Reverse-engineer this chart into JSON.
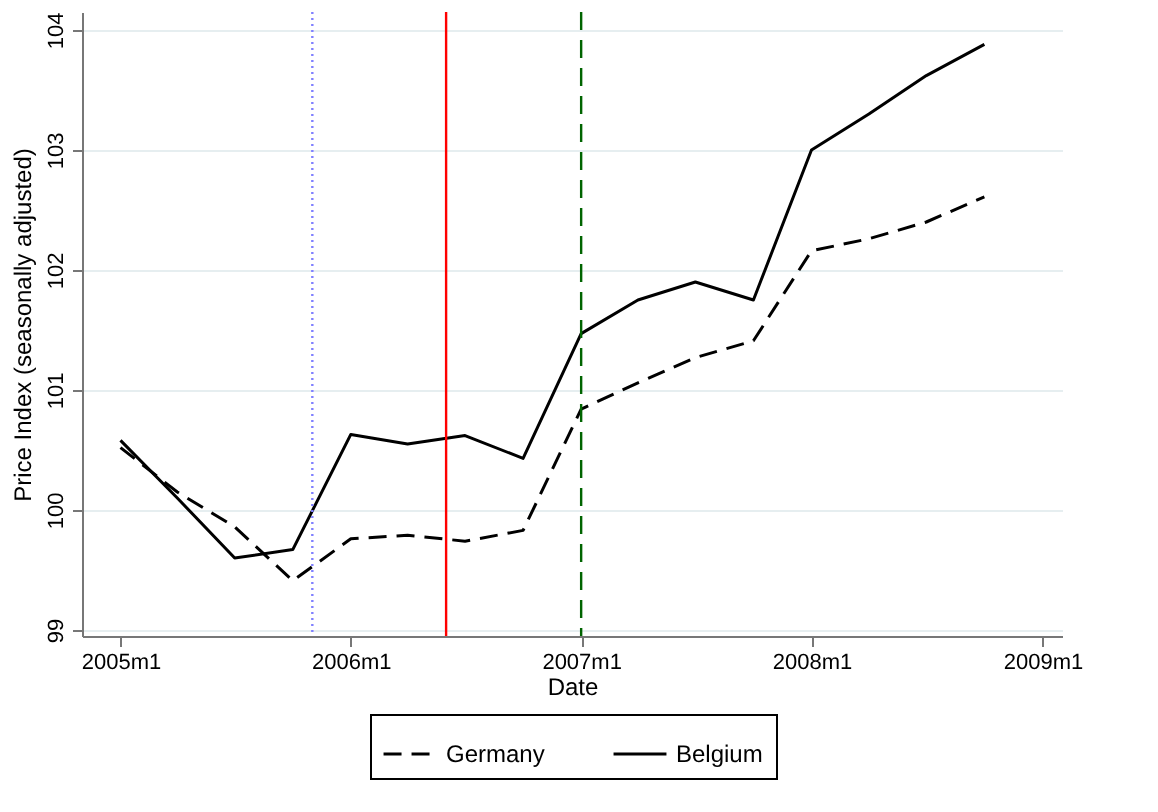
{
  "chart_data": {
    "type": "line",
    "xlabel": "Date",
    "ylabel": "Price Index (seasonally adjusted)",
    "x": [
      "2005-01",
      "2005-04",
      "2005-07",
      "2005-10",
      "2006-01",
      "2006-04",
      "2006-07",
      "2006-10",
      "2007-01",
      "2007-04",
      "2007-07",
      "2007-10",
      "2008-01",
      "2008-04",
      "2008-07",
      "2008-10"
    ],
    "series": [
      {
        "name": "Germany",
        "color": "#000000",
        "line_style": "dashed",
        "values": [
          100.52,
          100.15,
          99.86,
          99.41,
          99.76,
          99.79,
          99.74,
          99.83,
          100.84,
          101.06,
          101.27,
          101.41,
          102.16,
          102.26,
          102.4,
          102.61
        ]
      },
      {
        "name": "Belgium",
        "color": "#000000",
        "line_style": "solid",
        "values": [
          100.58,
          100.1,
          99.6,
          99.67,
          100.63,
          100.55,
          100.62,
          100.43,
          101.47,
          101.75,
          101.9,
          101.75,
          103.0,
          103.3,
          103.62,
          103.88
        ]
      }
    ],
    "xlim": [
      "2004-11",
      "2009-02"
    ],
    "xticks": [
      {
        "value": "2005-01",
        "label": "2005m1"
      },
      {
        "value": "2006-01",
        "label": "2006m1"
      },
      {
        "value": "2007-01",
        "label": "2007m1"
      },
      {
        "value": "2008-01",
        "label": "2008m1"
      },
      {
        "value": "2009-01",
        "label": "2009m1"
      }
    ],
    "ylim": [
      98.95,
      104.15
    ],
    "yticks": [
      99,
      100,
      101,
      102,
      103,
      104
    ],
    "ref_lines": [
      {
        "axis": "x",
        "value": "2005-11",
        "color": "#8080ff",
        "line_style": "dotted"
      },
      {
        "axis": "x",
        "value": "2006-06",
        "color": "#ff0000",
        "line_style": "solid"
      },
      {
        "axis": "x",
        "value": "2007-01",
        "color": "#006400",
        "line_style": "dashed"
      }
    ],
    "grid": "y",
    "legend": "bottom"
  }
}
